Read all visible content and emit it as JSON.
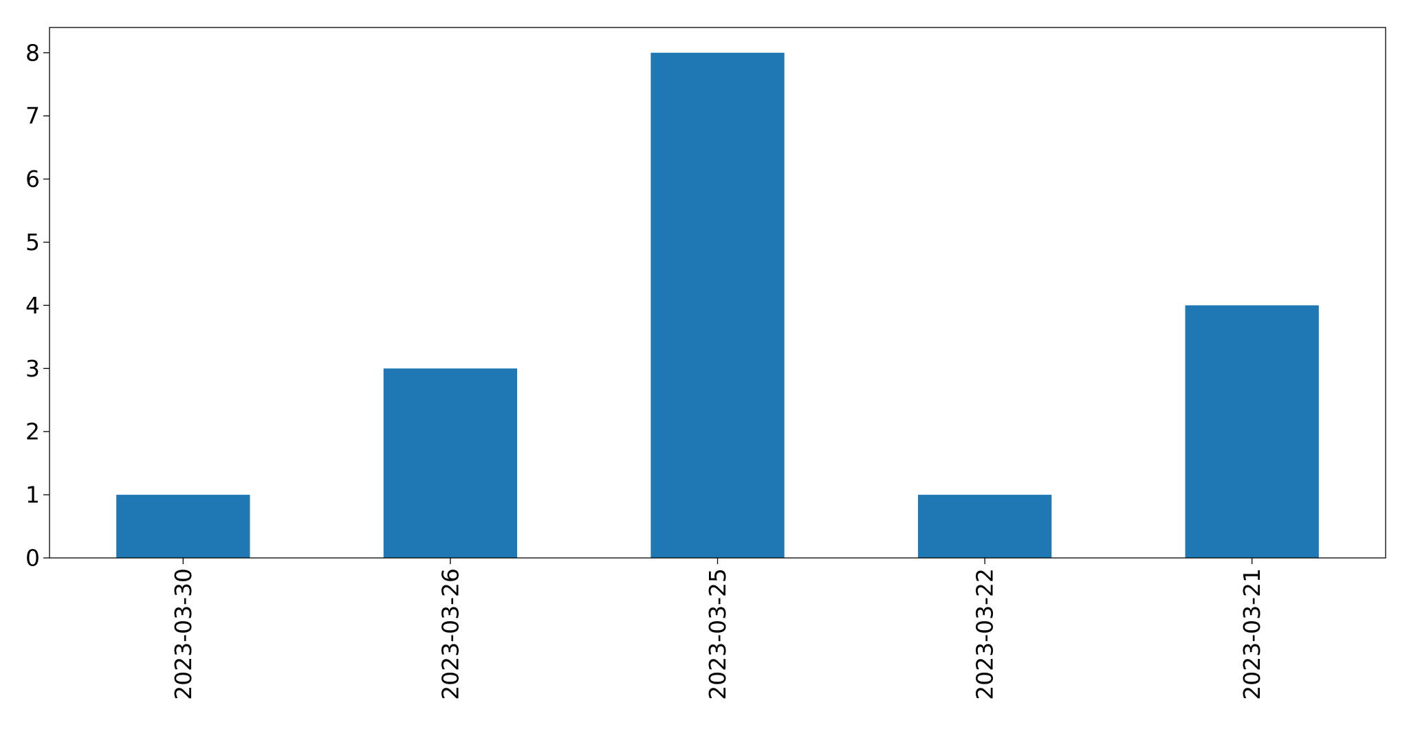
{
  "chart_data": {
    "type": "bar",
    "title": "",
    "xlabel": "",
    "ylabel": "",
    "categories": [
      "2023-03-30",
      "2023-03-26",
      "2023-03-25",
      "2023-03-22",
      "2023-03-21"
    ],
    "values": [
      1,
      3,
      8,
      1,
      4
    ],
    "ylim": [
      0,
      8.4
    ],
    "yticks": [
      0,
      1,
      2,
      3,
      4,
      5,
      6,
      7,
      8
    ],
    "grid": false,
    "legend": "none",
    "xtick_rotation": "vertical",
    "bar_color": "#1f77b4"
  }
}
